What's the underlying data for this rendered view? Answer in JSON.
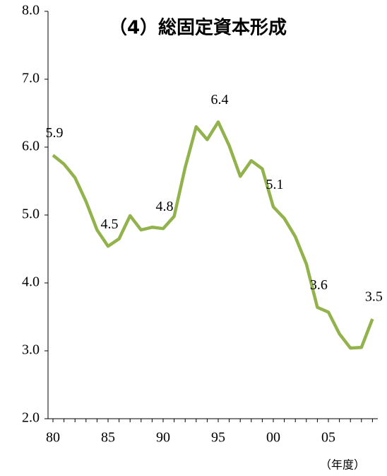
{
  "chart_data": {
    "type": "line",
    "title": "（4）総固定資本形成",
    "x_unit_label": "（年度）",
    "categories": [
      "80",
      null,
      null,
      null,
      null,
      "85",
      null,
      null,
      null,
      null,
      "90",
      null,
      null,
      null,
      null,
      "95",
      null,
      null,
      null,
      null,
      "00",
      null,
      null,
      null,
      null,
      "05",
      null,
      null,
      null,
      null
    ],
    "series": [
      {
        "color": "#92b24c",
        "values": [
          5.88,
          5.75,
          5.55,
          5.2,
          4.78,
          4.54,
          4.65,
          4.99,
          4.78,
          4.82,
          4.8,
          4.98,
          5.7,
          6.3,
          6.11,
          6.37,
          6.02,
          5.57,
          5.8,
          5.68,
          5.12,
          4.95,
          4.68,
          4.28,
          3.64,
          3.57,
          3.25,
          3.04,
          3.05,
          3.47
        ],
        "value_labels": [
          "5.9",
          null,
          null,
          null,
          null,
          "4.5",
          null,
          null,
          null,
          null,
          "4.8",
          null,
          null,
          null,
          null,
          "6.4",
          null,
          null,
          null,
          null,
          "5.1",
          null,
          null,
          null,
          "3.6",
          null,
          null,
          null,
          null,
          "3.5"
        ]
      }
    ],
    "ylim": [
      2,
      8
    ],
    "yticks": [
      {
        "value": 2,
        "label": "2.0"
      },
      {
        "value": 3,
        "label": "3.0"
      },
      {
        "value": 4,
        "label": "4.0"
      },
      {
        "value": 5,
        "label": "5.0"
      },
      {
        "value": 6,
        "label": "6.0"
      },
      {
        "value": 7,
        "label": "7.0"
      },
      {
        "value": 8,
        "label": "8.0"
      }
    ],
    "grid": false
  }
}
